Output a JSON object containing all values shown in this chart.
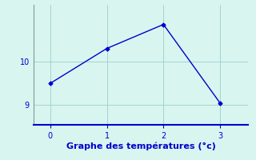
{
  "x": [
    0,
    1,
    2,
    3
  ],
  "y": [
    9.5,
    10.3,
    10.85,
    9.05
  ],
  "xlabel": "Graphe des températures (°c)",
  "line_color": "#0000cc",
  "bg_color": "#d8f5f0",
  "grid_color": "#9ecece",
  "axis_color": "#0000cc",
  "spine_color": "#7a9a9a",
  "tick_label_color": "#0000cc",
  "xlabel_color": "#0000cc",
  "ylim": [
    8.55,
    11.3
  ],
  "xlim": [
    -0.3,
    3.5
  ],
  "yticks": [
    9,
    10
  ],
  "xticks": [
    0,
    1,
    2,
    3
  ],
  "marker": "D",
  "marker_size": 2.5,
  "line_width": 1.0,
  "xlabel_fontsize": 8,
  "tick_fontsize": 7
}
